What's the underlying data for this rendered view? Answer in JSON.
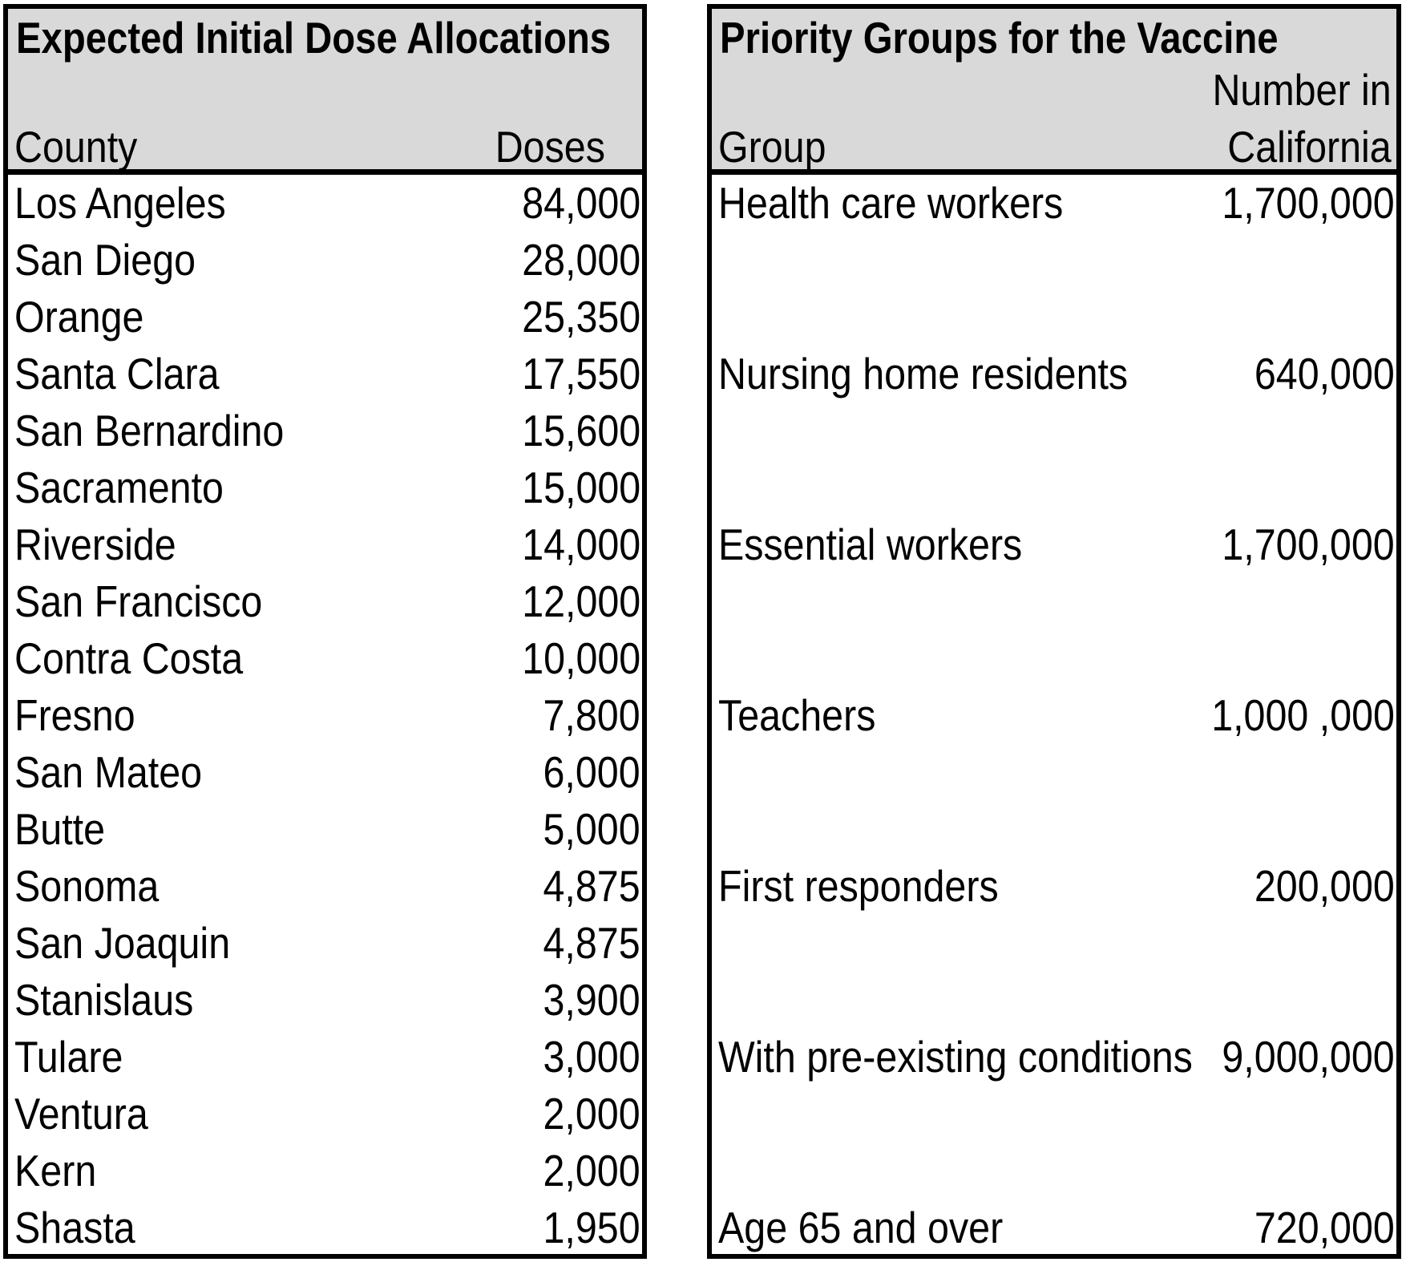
{
  "allocations": {
    "title": "Expected Initial Dose Allocations",
    "col_county": "County",
    "col_doses": "Doses",
    "rows": [
      {
        "county": "Los Angeles",
        "doses": "84,000"
      },
      {
        "county": "San Diego",
        "doses": "28,000"
      },
      {
        "county": "Orange",
        "doses": "25,350"
      },
      {
        "county": "Santa Clara",
        "doses": "17,550"
      },
      {
        "county": "San Bernardino",
        "doses": "15,600"
      },
      {
        "county": "Sacramento",
        "doses": "15,000"
      },
      {
        "county": "Riverside",
        "doses": "14,000"
      },
      {
        "county": "San Francisco",
        "doses": "12,000"
      },
      {
        "county": "Contra Costa",
        "doses": "10,000"
      },
      {
        "county": "Fresno",
        "doses": "7,800"
      },
      {
        "county": "San Mateo",
        "doses": "6,000"
      },
      {
        "county": "Butte",
        "doses": "5,000"
      },
      {
        "county": "Sonoma",
        "doses": "4,875"
      },
      {
        "county": "San Joaquin",
        "doses": "4,875"
      },
      {
        "county": "Stanislaus",
        "doses": "3,900"
      },
      {
        "county": "Tulare",
        "doses": "3,000"
      },
      {
        "county": "Ventura",
        "doses": "2,000"
      },
      {
        "county": "Kern",
        "doses": "2,000"
      },
      {
        "county": "Shasta",
        "doses": "1,950"
      }
    ]
  },
  "priority": {
    "title": "Priority Groups for the Vaccine",
    "col_group": "Group",
    "col_number_line1": "Number in",
    "col_number_line2": "California",
    "rows": [
      {
        "group": "Health care workers",
        "number": "1,700,000"
      },
      {
        "group": "",
        "number": ""
      },
      {
        "group": "",
        "number": ""
      },
      {
        "group": "Nursing home residents",
        "number": "640,000"
      },
      {
        "group": "",
        "number": ""
      },
      {
        "group": "",
        "number": ""
      },
      {
        "group": "Essential workers",
        "number": "1,700,000"
      },
      {
        "group": "",
        "number": ""
      },
      {
        "group": "",
        "number": ""
      },
      {
        "group": "Teachers",
        "number": "1,000 ,000"
      },
      {
        "group": "",
        "number": ""
      },
      {
        "group": "",
        "number": ""
      },
      {
        "group": "First responders",
        "number": "200,000"
      },
      {
        "group": "",
        "number": ""
      },
      {
        "group": "",
        "number": ""
      },
      {
        "group": "With pre-existing conditions",
        "number": "9,000,000"
      },
      {
        "group": "",
        "number": ""
      },
      {
        "group": "",
        "number": ""
      },
      {
        "group": "Age 65 and over",
        "number": "720,000"
      }
    ]
  }
}
